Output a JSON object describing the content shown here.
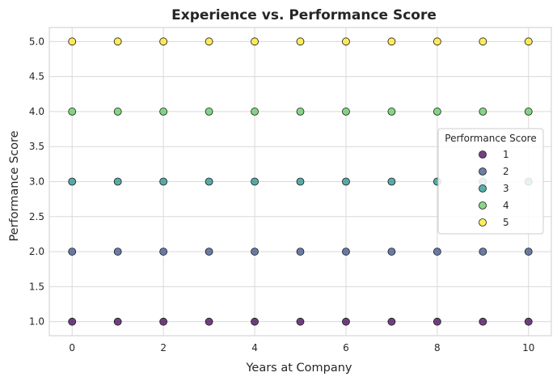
{
  "chart_data": {
    "type": "scatter",
    "title": "Experience vs. Performance Score",
    "xlabel": "Years at Company",
    "ylabel": "Performance Score",
    "xlim": [
      -0.5,
      10.5
    ],
    "ylim": [
      0.8,
      5.2
    ],
    "xticks": [
      0,
      2,
      4,
      6,
      8,
      10
    ],
    "yticks": [
      1.0,
      1.5,
      2.0,
      2.5,
      3.0,
      3.5,
      4.0,
      4.5,
      5.0
    ],
    "grid": true,
    "legend": {
      "title": "Performance Score",
      "placement": "center-right"
    },
    "colormap": "viridis",
    "series": [
      {
        "name": "1",
        "color": "#440154",
        "x": [
          0,
          1,
          2,
          3,
          4,
          5,
          6,
          7,
          8,
          9,
          10
        ],
        "y": [
          1,
          1,
          1,
          1,
          1,
          1,
          1,
          1,
          1,
          1,
          1
        ]
      },
      {
        "name": "2",
        "color": "#3b528b",
        "x": [
          0,
          1,
          2,
          3,
          4,
          5,
          6,
          7,
          8,
          9,
          10
        ],
        "y": [
          2,
          2,
          2,
          2,
          2,
          2,
          2,
          2,
          2,
          2,
          2
        ]
      },
      {
        "name": "3",
        "color": "#21918c",
        "x": [
          0,
          1,
          2,
          3,
          4,
          5,
          6,
          7,
          8,
          9,
          10
        ],
        "y": [
          3,
          3,
          3,
          3,
          3,
          3,
          3,
          3,
          3,
          3,
          3
        ]
      },
      {
        "name": "4",
        "color": "#5ec962",
        "x": [
          0,
          1,
          2,
          3,
          4,
          5,
          6,
          7,
          8,
          9,
          10
        ],
        "y": [
          4,
          4,
          4,
          4,
          4,
          4,
          4,
          4,
          4,
          4,
          4
        ]
      },
      {
        "name": "5",
        "color": "#fde725",
        "x": [
          0,
          1,
          2,
          3,
          4,
          5,
          6,
          7,
          8,
          9,
          10
        ],
        "y": [
          5,
          5,
          5,
          5,
          5,
          5,
          5,
          5,
          5,
          5,
          5
        ]
      }
    ]
  }
}
